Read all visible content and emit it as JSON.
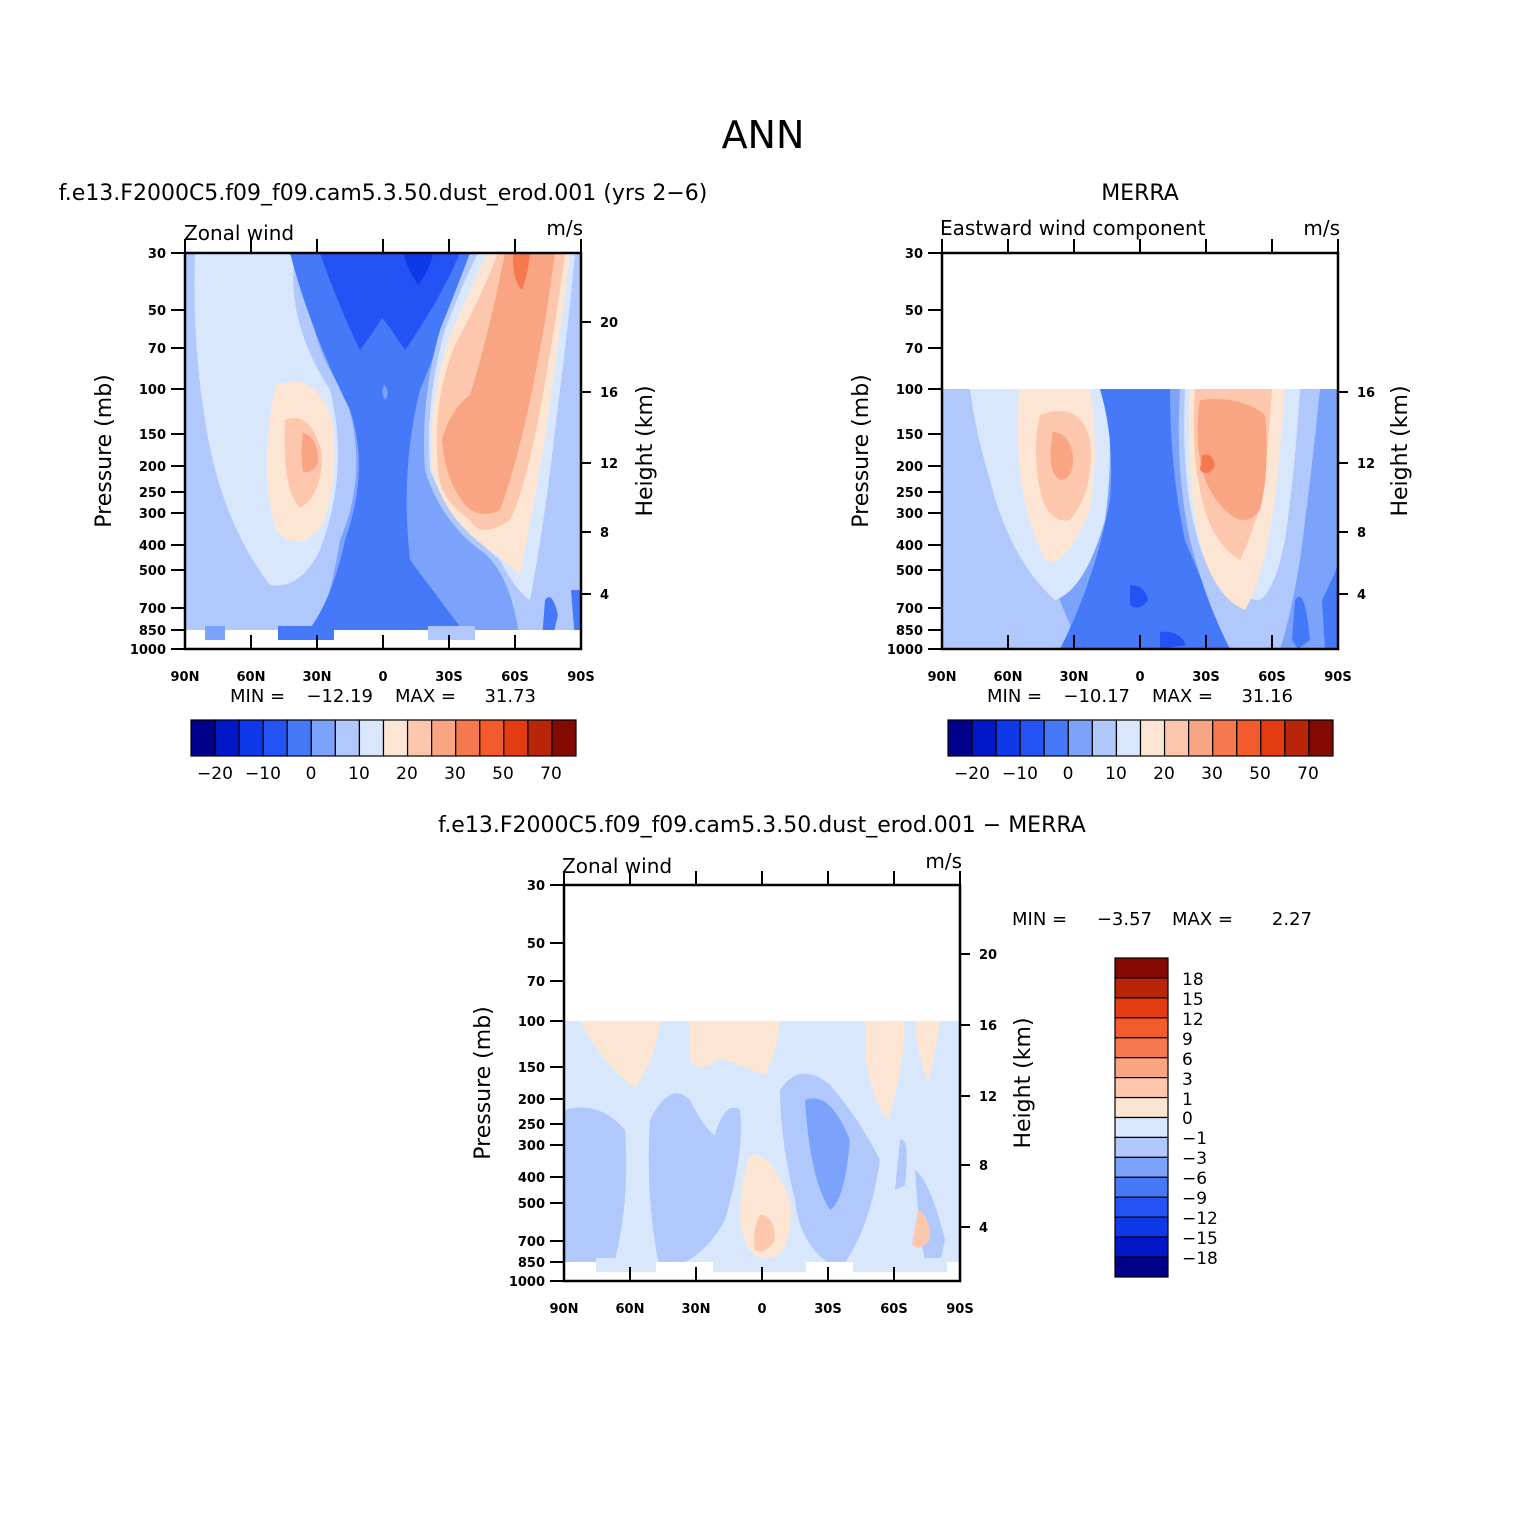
{
  "figure": {
    "title": "ANN",
    "panel_tl_header": "f.e13.F2000C5.f09_f09.cam5.3.50.dust_erod.001 (yrs 2−6)",
    "panel_tr_header": "MERRA",
    "panel_bottom_header": "f.e13.F2000C5.f09_f09.cam5.3.50.dust_erod.001 − MERRA"
  },
  "chart_data": [
    {
      "type": "heatmap",
      "panel": "model",
      "title_left": "Zonal wind",
      "title_right": "m/s",
      "ylabel": "Pressure (mb)",
      "ylabel_right": "Height (km)",
      "x_ticks": [
        "90N",
        "60N",
        "30N",
        "0",
        "30S",
        "60S",
        "90S"
      ],
      "y_ticks": [
        "30",
        "50",
        "70",
        "100",
        "150",
        "200",
        "250",
        "300",
        "400",
        "500",
        "700",
        "850",
        "1000"
      ],
      "height_ticks": [
        "20",
        "16",
        "12",
        "8",
        "4"
      ],
      "min_label": "MIN =",
      "min_value": "−12.19",
      "max_label": "MAX =",
      "max_value": "31.73",
      "colorbar_labels": [
        "−20",
        "−10",
        "0",
        "10",
        "20",
        "30",
        "50",
        "70"
      ],
      "colorbar_colors": [
        "#00008b",
        "#0018c8",
        "#0f38e8",
        "#2453f5",
        "#4579f7",
        "#7ca3fb",
        "#b0c8fc",
        "#d9e7fd",
        "#fde5d3",
        "#fcc7ad",
        "#f9a583",
        "#f6784f",
        "#f35a2c",
        "#e33b12",
        "#b82508",
        "#830a00"
      ],
      "min": -12.19,
      "max": 31.73
    },
    {
      "type": "heatmap",
      "panel": "obs",
      "title_left": "Eastward wind component",
      "title_right": "m/s",
      "ylabel": "Pressure (mb)",
      "ylabel_right": "Height (km)",
      "x_ticks": [
        "90N",
        "60N",
        "30N",
        "0",
        "30S",
        "60S",
        "90S"
      ],
      "y_ticks": [
        "30",
        "50",
        "70",
        "100",
        "150",
        "200",
        "250",
        "300",
        "400",
        "500",
        "700",
        "850",
        "1000"
      ],
      "height_ticks": [
        "16",
        "12",
        "8",
        "4"
      ],
      "min_label": "MIN =",
      "min_value": "−10.17",
      "max_label": "MAX =",
      "max_value": "31.16",
      "colorbar_labels": [
        "−20",
        "−10",
        "0",
        "10",
        "20",
        "30",
        "50",
        "70"
      ],
      "colorbar_colors": [
        "#00008b",
        "#0018c8",
        "#0f38e8",
        "#2453f5",
        "#4579f7",
        "#7ca3fb",
        "#b0c8fc",
        "#d9e7fd",
        "#fde5d3",
        "#fcc7ad",
        "#f9a583",
        "#f6784f",
        "#f35a2c",
        "#e33b12",
        "#b82508",
        "#830a00"
      ],
      "min": -10.17,
      "max": 31.16
    },
    {
      "type": "heatmap",
      "panel": "difference",
      "title_left": "Zonal wind",
      "title_right": "m/s",
      "ylabel": "Pressure (mb)",
      "ylabel_right": "Height (km)",
      "x_ticks": [
        "90N",
        "60N",
        "30N",
        "0",
        "30S",
        "60S",
        "90S"
      ],
      "y_ticks": [
        "30",
        "50",
        "70",
        "100",
        "150",
        "200",
        "250",
        "300",
        "400",
        "500",
        "700",
        "850",
        "1000"
      ],
      "height_ticks": [
        "20",
        "16",
        "12",
        "8",
        "4"
      ],
      "min_label": "MIN =",
      "min_value": "−3.57",
      "max_label": "MAX =",
      "max_value": "2.27",
      "colorbar_labels": [
        "18",
        "15",
        "12",
        "9",
        "6",
        "3",
        "1",
        "0",
        "−1",
        "−3",
        "−6",
        "−9",
        "−12",
        "−15",
        "−18"
      ],
      "colorbar_colors": [
        "#830a00",
        "#b82508",
        "#e33b12",
        "#f35a2c",
        "#f6784f",
        "#f9a583",
        "#fcc7ad",
        "#fde5d3",
        "#d9e7fd",
        "#b0c8fc",
        "#7ca3fb",
        "#4579f7",
        "#2453f5",
        "#0f38e8",
        "#0018c8",
        "#00008b"
      ],
      "min": -3.57,
      "max": 2.27
    }
  ]
}
